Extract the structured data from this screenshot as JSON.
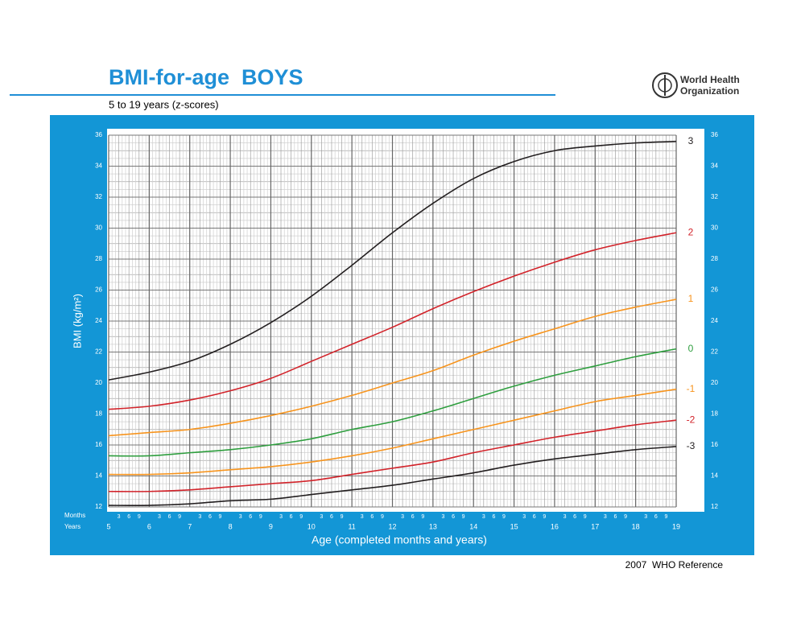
{
  "header": {
    "title": "BMI-for-age  BOYS",
    "subtitle": "5 to 19 years (z-scores)",
    "logo_lines": [
      "World Health",
      "Organization"
    ]
  },
  "chart_data": {
    "type": "line",
    "x": [
      5,
      6,
      7,
      8,
      9,
      10,
      11,
      12,
      13,
      14,
      15,
      16,
      17,
      18,
      19
    ],
    "series": [
      {
        "name": "3",
        "color": "#231f20",
        "values": [
          20.2,
          20.7,
          21.4,
          22.5,
          23.9,
          25.6,
          27.6,
          29.7,
          31.6,
          33.2,
          34.3,
          35.0,
          35.3,
          35.5,
          35.6
        ]
      },
      {
        "name": "2",
        "color": "#d2232a",
        "values": [
          18.3,
          18.5,
          18.9,
          19.5,
          20.3,
          21.4,
          22.5,
          23.6,
          24.8,
          25.9,
          26.9,
          27.8,
          28.6,
          29.2,
          29.7
        ]
      },
      {
        "name": "1",
        "color": "#f7941d",
        "values": [
          16.6,
          16.8,
          17.0,
          17.4,
          17.9,
          18.5,
          19.2,
          20.0,
          20.8,
          21.8,
          22.7,
          23.5,
          24.3,
          24.9,
          25.4
        ]
      },
      {
        "name": "0",
        "color": "#2e9e3e",
        "values": [
          15.3,
          15.3,
          15.5,
          15.7,
          16.0,
          16.4,
          17.0,
          17.5,
          18.2,
          19.0,
          19.8,
          20.5,
          21.1,
          21.7,
          22.2
        ]
      },
      {
        "name": "-1",
        "color": "#f7941d",
        "values": [
          14.1,
          14.1,
          14.2,
          14.4,
          14.6,
          14.9,
          15.3,
          15.8,
          16.4,
          17.0,
          17.6,
          18.2,
          18.8,
          19.2,
          19.6
        ]
      },
      {
        "name": "-2",
        "color": "#d2232a",
        "values": [
          13.0,
          13.0,
          13.1,
          13.3,
          13.5,
          13.7,
          14.1,
          14.5,
          14.9,
          15.5,
          16.0,
          16.5,
          16.9,
          17.3,
          17.6
        ]
      },
      {
        "name": "-3",
        "color": "#231f20",
        "values": [
          12.1,
          12.1,
          12.2,
          12.4,
          12.5,
          12.8,
          13.1,
          13.4,
          13.8,
          14.2,
          14.7,
          15.1,
          15.4,
          15.7,
          15.9
        ]
      }
    ],
    "xlim": [
      5,
      19
    ],
    "ylim": [
      12,
      36
    ],
    "xticks": [
      5,
      6,
      7,
      8,
      9,
      10,
      11,
      12,
      13,
      14,
      15,
      16,
      17,
      18,
      19
    ],
    "yticks": [
      12,
      14,
      16,
      18,
      20,
      22,
      24,
      26,
      28,
      30,
      32,
      34,
      36
    ],
    "month_labels": [
      "3",
      "6",
      "9"
    ],
    "row_labels": [
      "Months",
      "Years"
    ],
    "ylabel": "BMI (kg/m²)",
    "xlabel": "Age (completed months and years)",
    "grid": true
  },
  "footer": "2007  WHO Reference"
}
